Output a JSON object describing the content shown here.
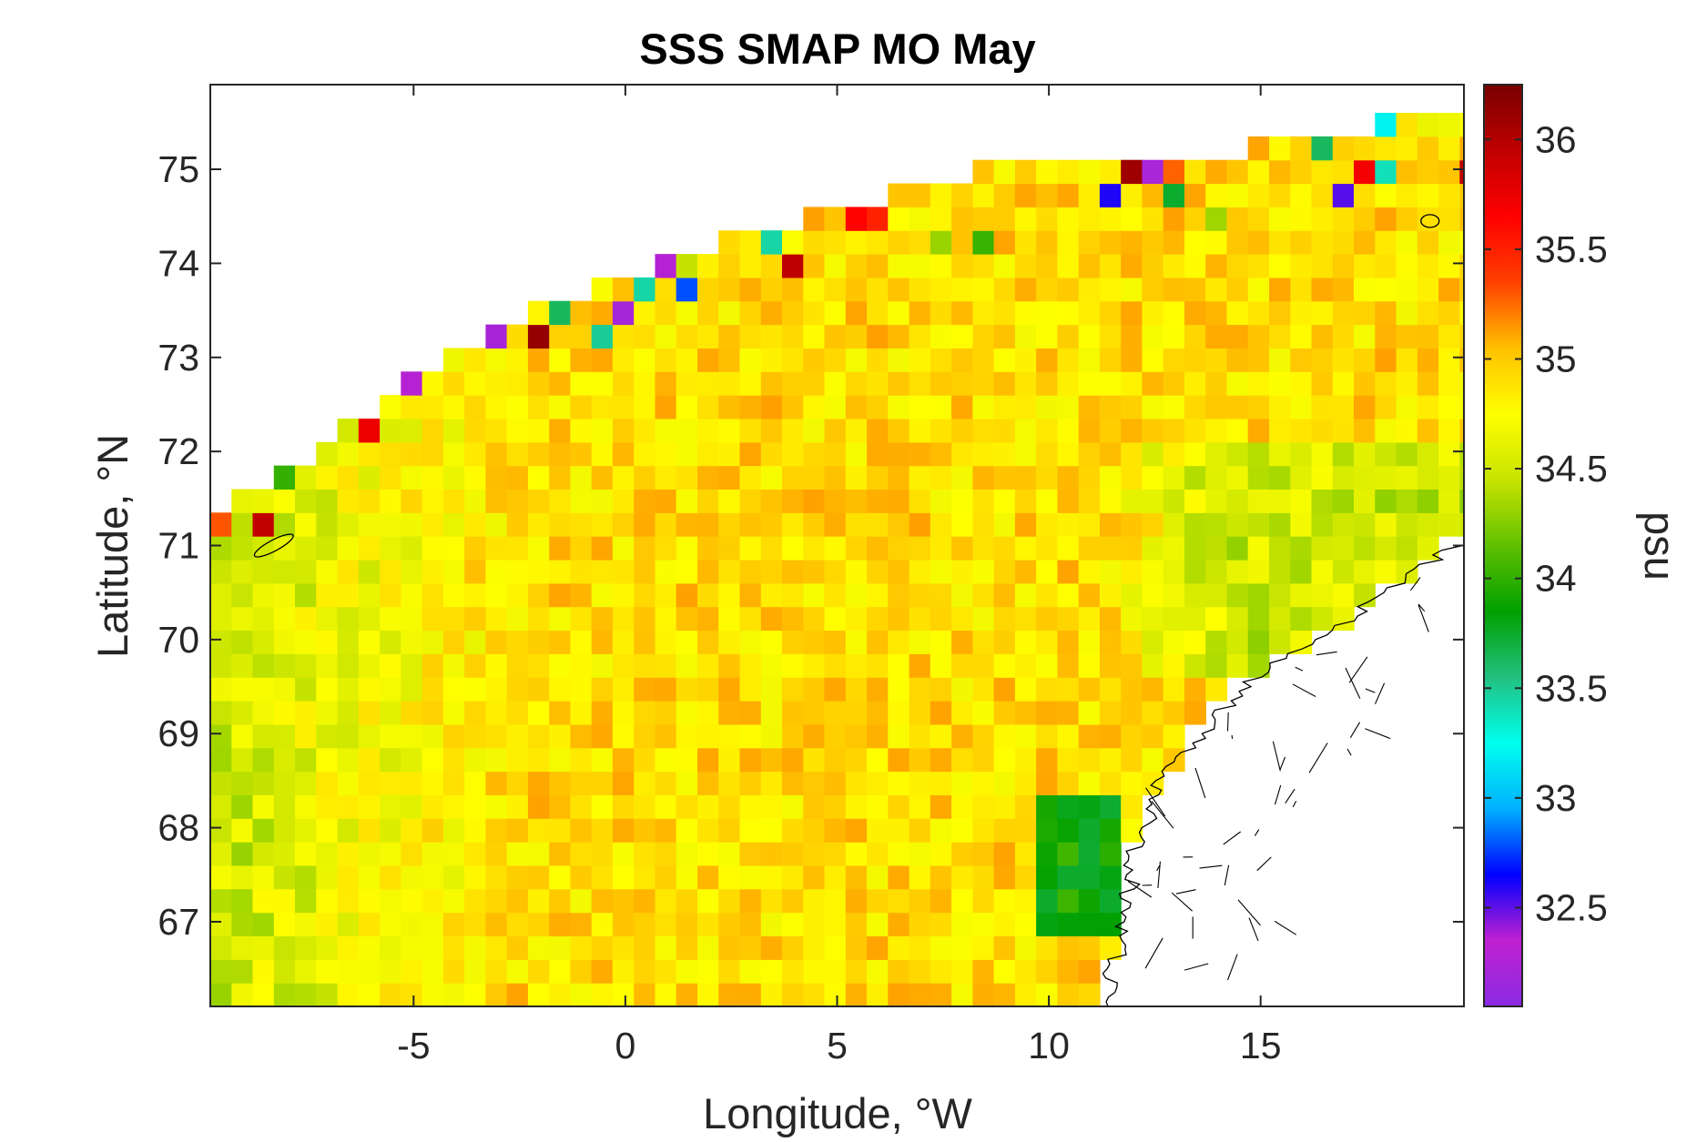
{
  "chart_data": {
    "type": "heatmap",
    "title": "SSS SMAP MO May",
    "xlabel": "Longitude, °W",
    "ylabel": "Latitude, °N",
    "xlim": [
      -9.8,
      19.8
    ],
    "ylim": [
      66.1,
      75.9
    ],
    "x_ticks": [
      -5,
      0,
      5,
      10,
      15
    ],
    "x_tick_labels": [
      "-5",
      "0",
      "5",
      "10",
      "15"
    ],
    "y_ticks": [
      67,
      68,
      69,
      70,
      71,
      72,
      73,
      74,
      75
    ],
    "y_tick_labels": [
      "67",
      "68",
      "69",
      "70",
      "71",
      "72",
      "73",
      "74",
      "75"
    ],
    "colorbar": {
      "label": "psu",
      "range": [
        32.05,
        36.25
      ],
      "ticks": [
        32.5,
        33,
        33.5,
        34,
        34.5,
        35,
        35.5,
        36
      ],
      "tick_labels": [
        "32.5",
        "33",
        "33.5",
        "34",
        "34.5",
        "35",
        "35.5",
        "36"
      ],
      "colormap": [
        "#8a2be2",
        "#c020d0",
        "#0000ff",
        "#00b0ff",
        "#00ffee",
        "#22c080",
        "#00a000",
        "#60c000",
        "#c8e400",
        "#ffff00",
        "#ffc000",
        "#ff4000",
        "#ff0000",
        "#c00000",
        "#780000"
      ]
    },
    "grid": {
      "lon_start": -9.8,
      "lon_step": 0.5,
      "lat_start": 66.1,
      "lat_step": 0.25,
      "columns": 60,
      "rows": 39
    },
    "field_description_values": {
      "interior_typical": 34.9,
      "east_band_typical": 34.5,
      "coastal_low": 33.9,
      "ice_edge_range": [
        32.2,
        36.2
      ]
    }
  }
}
